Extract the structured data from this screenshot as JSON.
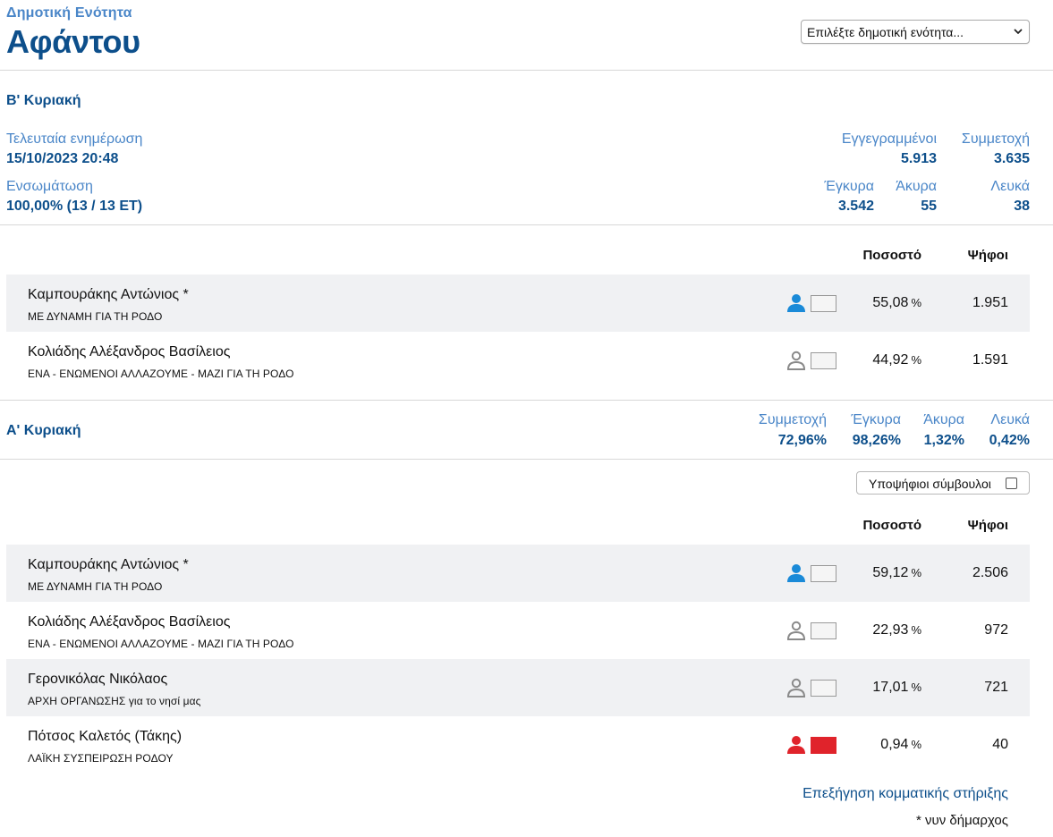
{
  "header": {
    "supertitle": "Δημοτική Ενότητα",
    "title": "Αφάντου",
    "select_label": "Επιλέξτε δημοτική ενότητα..."
  },
  "round2": {
    "title": "Β' Κυριακή",
    "last_update_label": "Τελευταία ενημέρωση",
    "last_update_value": "15/10/2023 20:48",
    "integration_label": "Ενσωμάτωση",
    "integration_value": "100,00% (13 / 13 ΕΤ)",
    "registered_label": "Εγγεγραμμένοι",
    "registered_value": "5.913",
    "turnout_label": "Συμμετοχή",
    "turnout_value": "3.635",
    "valid_label": "Έγκυρα",
    "valid_value": "3.542",
    "invalid_label": "Άκυρα",
    "invalid_value": "55",
    "blank_label": "Λευκά",
    "blank_value": "38",
    "col_percent": "Ποσοστό",
    "col_votes": "Ψήφοι",
    "candidates": [
      {
        "name": "Καμπουράκης Αντώνιος *",
        "party": "ΜΕ ΔΥΝΑΜΗ ΓΙΑ ΤΗ ΡΟΔΟ",
        "percent": "55,08",
        "unit": "%",
        "votes": "1.951",
        "icon_color": "#1a8ad8",
        "box_color": "#f5f5f5"
      },
      {
        "name": "Κολιάδης Αλέξανδρος Βασίλειος",
        "party": "ΕΝΑ - ΕΝΩΜΕΝΟΙ ΑΛΛΑΖΟΥΜΕ - ΜΑΖΙ ΓΙΑ ΤΗ ΡΟΔΟ",
        "percent": "44,92",
        "unit": "%",
        "votes": "1.591",
        "icon_color": "#8a8a8a",
        "box_color": "#f5f5f5"
      }
    ]
  },
  "round1": {
    "title": "Α' Κυριακή",
    "turnout_label": "Συμμετοχή",
    "turnout_value": "72,96%",
    "valid_label": "Έγκυρα",
    "valid_value": "98,26%",
    "invalid_label": "Άκυρα",
    "invalid_value": "1,32%",
    "blank_label": "Λευκά",
    "blank_value": "0,42%",
    "councillors_toggle": "Υποψήφιοι σύμβουλοι",
    "col_percent": "Ποσοστό",
    "col_votes": "Ψήφοι",
    "candidates": [
      {
        "name": "Καμπουράκης Αντώνιος *",
        "party": "ΜΕ ΔΥΝΑΜΗ ΓΙΑ ΤΗ ΡΟΔΟ",
        "percent": "59,12",
        "unit": "%",
        "votes": "2.506",
        "icon_color": "#1a8ad8",
        "box_color": "#f5f5f5"
      },
      {
        "name": "Κολιάδης Αλέξανδρος Βασίλειος",
        "party": "ΕΝΑ - ΕΝΩΜΕΝΟΙ ΑΛΛΑΖΟΥΜΕ - ΜΑΖΙ ΓΙΑ ΤΗ ΡΟΔΟ",
        "percent": "22,93",
        "unit": "%",
        "votes": "972",
        "icon_color": "#8a8a8a",
        "box_color": "#f5f5f5"
      },
      {
        "name": "Γερονικόλας Νικόλαος",
        "party": "ΑΡΧΗ ΟΡΓΑΝΩΣΗΣ για το νησί μας",
        "percent": "17,01",
        "unit": "%",
        "votes": "721",
        "icon_color": "#8a8a8a",
        "box_color": "#f5f5f5"
      },
      {
        "name": "Πότσος Καλετός (Τάκης)",
        "party": "ΛΑΪΚΗ ΣΥΣΠΕΙΡΩΣΗ ΡΟΔΟΥ",
        "percent": "0,94",
        "unit": "%",
        "votes": "40",
        "icon_color": "#e0232b",
        "box_color": "#e0232b"
      }
    ]
  },
  "footer": {
    "party_support_link": "Επεξήγηση κομματικής στήριξης",
    "note": "* νυν δήμαρχος"
  },
  "icons": {
    "select_chevron": "chevron-down-icon",
    "candidate": "person-icon",
    "checkbox": "checkbox-icon"
  }
}
